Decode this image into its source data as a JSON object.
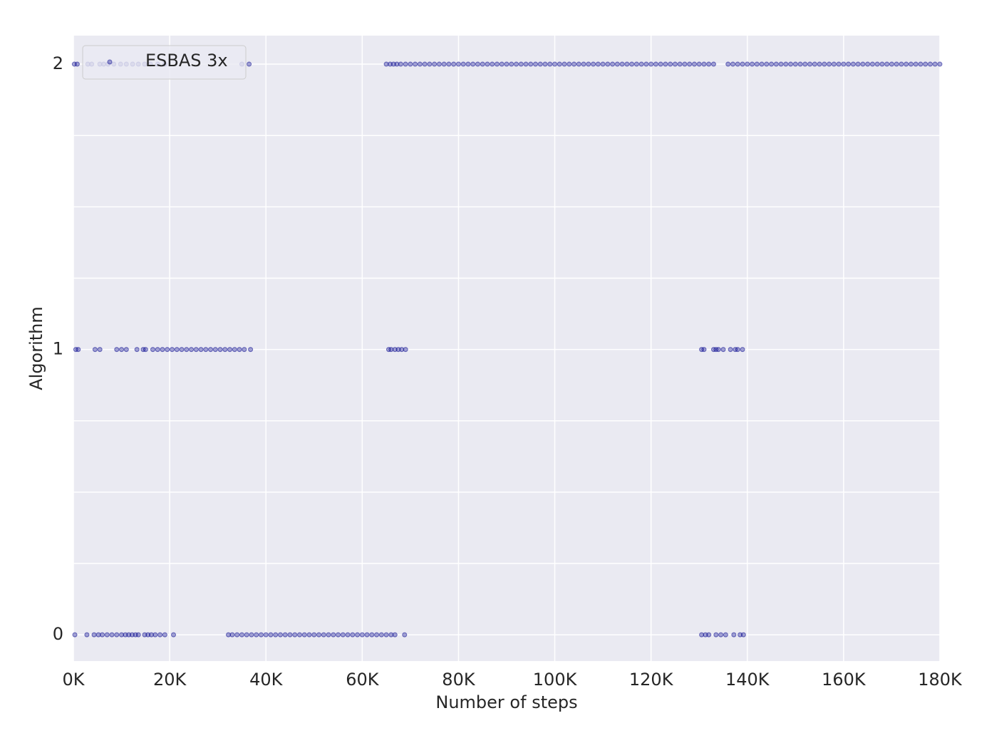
{
  "chart_data": {
    "type": "scatter",
    "x_label": "Number of steps",
    "y_label": "Algorithm",
    "xlim": [
      0,
      180000
    ],
    "ylim": [
      -0.092,
      2.1
    ],
    "xticks": [
      {
        "value": 0,
        "label": "0K"
      },
      {
        "value": 20000,
        "label": "20K"
      },
      {
        "value": 40000,
        "label": "40K"
      },
      {
        "value": 60000,
        "label": "60K"
      },
      {
        "value": 80000,
        "label": "80K"
      },
      {
        "value": 100000,
        "label": "100K"
      },
      {
        "value": 120000,
        "label": "120K"
      },
      {
        "value": 140000,
        "label": "140K"
      },
      {
        "value": 160000,
        "label": "160K"
      },
      {
        "value": 180000,
        "label": "180K"
      }
    ],
    "yticks": [
      0,
      1,
      2
    ],
    "ygrid": [
      0,
      0.25,
      0.5,
      0.75,
      1,
      1.25,
      1.5,
      1.75,
      2
    ],
    "grid": true,
    "legend": "upper left",
    "series": [
      {
        "name": "ESBAS 3x",
        "color": "#00008b",
        "points": [
          [
            200,
            2
          ],
          [
            800,
            2
          ],
          [
            3000,
            2
          ],
          [
            3800,
            2
          ],
          [
            5500,
            2
          ],
          [
            6300,
            2
          ],
          [
            7200,
            2
          ],
          [
            8400,
            2
          ],
          [
            9800,
            2
          ],
          [
            11000,
            2
          ],
          [
            12300,
            2
          ],
          [
            13500,
            2
          ],
          [
            14800,
            2
          ],
          [
            16000,
            2
          ],
          [
            17500,
            2
          ],
          [
            19000,
            2
          ],
          [
            35000,
            2
          ],
          [
            36500,
            2
          ],
          [
            65000,
            2
          ],
          [
            65800,
            2
          ],
          [
            66500,
            2
          ],
          [
            67200,
            2
          ],
          [
            68000,
            2
          ],
          [
            69000,
            2
          ],
          [
            70000,
            2
          ],
          [
            71000,
            2
          ],
          [
            72000,
            2
          ],
          [
            73000,
            2
          ],
          [
            74000,
            2
          ],
          [
            75000,
            2
          ],
          [
            76000,
            2
          ],
          [
            77000,
            2
          ],
          [
            78000,
            2
          ],
          [
            79000,
            2
          ],
          [
            80000,
            2
          ],
          [
            81000,
            2
          ],
          [
            82000,
            2
          ],
          [
            83000,
            2
          ],
          [
            84000,
            2
          ],
          [
            85000,
            2
          ],
          [
            86000,
            2
          ],
          [
            87000,
            2
          ],
          [
            88000,
            2
          ],
          [
            89000,
            2
          ],
          [
            90000,
            2
          ],
          [
            91000,
            2
          ],
          [
            92000,
            2
          ],
          [
            93000,
            2
          ],
          [
            94000,
            2
          ],
          [
            95000,
            2
          ],
          [
            96000,
            2
          ],
          [
            97000,
            2
          ],
          [
            98000,
            2
          ],
          [
            99000,
            2
          ],
          [
            100000,
            2
          ],
          [
            101000,
            2
          ],
          [
            102000,
            2
          ],
          [
            103000,
            2
          ],
          [
            104000,
            2
          ],
          [
            105000,
            2
          ],
          [
            106000,
            2
          ],
          [
            107000,
            2
          ],
          [
            108000,
            2
          ],
          [
            109000,
            2
          ],
          [
            110000,
            2
          ],
          [
            111000,
            2
          ],
          [
            112000,
            2
          ],
          [
            113000,
            2
          ],
          [
            114000,
            2
          ],
          [
            115000,
            2
          ],
          [
            116000,
            2
          ],
          [
            117000,
            2
          ],
          [
            118000,
            2
          ],
          [
            119000,
            2
          ],
          [
            120000,
            2
          ],
          [
            121000,
            2
          ],
          [
            122000,
            2
          ],
          [
            123000,
            2
          ],
          [
            124000,
            2
          ],
          [
            125000,
            2
          ],
          [
            126000,
            2
          ],
          [
            127000,
            2
          ],
          [
            128000,
            2
          ],
          [
            129000,
            2
          ],
          [
            130000,
            2
          ],
          [
            131000,
            2
          ],
          [
            132000,
            2
          ],
          [
            133000,
            2
          ],
          [
            136000,
            2
          ],
          [
            137000,
            2
          ],
          [
            138000,
            2
          ],
          [
            139000,
            2
          ],
          [
            140000,
            2
          ],
          [
            141000,
            2
          ],
          [
            142000,
            2
          ],
          [
            143000,
            2
          ],
          [
            144000,
            2
          ],
          [
            145000,
            2
          ],
          [
            146000,
            2
          ],
          [
            147000,
            2
          ],
          [
            148000,
            2
          ],
          [
            149000,
            2
          ],
          [
            150000,
            2
          ],
          [
            151000,
            2
          ],
          [
            152000,
            2
          ],
          [
            153000,
            2
          ],
          [
            154000,
            2
          ],
          [
            155000,
            2
          ],
          [
            156000,
            2
          ],
          [
            157000,
            2
          ],
          [
            158000,
            2
          ],
          [
            159000,
            2
          ],
          [
            160000,
            2
          ],
          [
            161000,
            2
          ],
          [
            162000,
            2
          ],
          [
            163000,
            2
          ],
          [
            164000,
            2
          ],
          [
            165000,
            2
          ],
          [
            166000,
            2
          ],
          [
            167000,
            2
          ],
          [
            168000,
            2
          ],
          [
            169000,
            2
          ],
          [
            170000,
            2
          ],
          [
            171000,
            2
          ],
          [
            172000,
            2
          ],
          [
            173000,
            2
          ],
          [
            174000,
            2
          ],
          [
            175000,
            2
          ],
          [
            176000,
            2
          ],
          [
            177000,
            2
          ],
          [
            178000,
            2
          ],
          [
            179000,
            2
          ],
          [
            180000,
            2
          ],
          [
            500,
            1
          ],
          [
            1000,
            1
          ],
          [
            4500,
            1
          ],
          [
            5500,
            1
          ],
          [
            9000,
            1
          ],
          [
            10000,
            1
          ],
          [
            11000,
            1
          ],
          [
            13200,
            1
          ],
          [
            14500,
            1
          ],
          [
            15000,
            1
          ],
          [
            16500,
            1
          ],
          [
            17500,
            1
          ],
          [
            18500,
            1
          ],
          [
            19500,
            1
          ],
          [
            20500,
            1
          ],
          [
            21500,
            1
          ],
          [
            22500,
            1
          ],
          [
            23500,
            1
          ],
          [
            24500,
            1
          ],
          [
            25500,
            1
          ],
          [
            26500,
            1
          ],
          [
            27500,
            1
          ],
          [
            28500,
            1
          ],
          [
            29500,
            1
          ],
          [
            30500,
            1
          ],
          [
            31500,
            1
          ],
          [
            32500,
            1
          ],
          [
            33500,
            1
          ],
          [
            34500,
            1
          ],
          [
            35500,
            1
          ],
          [
            36800,
            1
          ],
          [
            65500,
            1
          ],
          [
            66000,
            1
          ],
          [
            66800,
            1
          ],
          [
            67500,
            1
          ],
          [
            68200,
            1
          ],
          [
            69000,
            1
          ],
          [
            130500,
            1
          ],
          [
            131000,
            1
          ],
          [
            133000,
            1
          ],
          [
            133500,
            1
          ],
          [
            134000,
            1
          ],
          [
            135000,
            1
          ],
          [
            136500,
            1
          ],
          [
            137500,
            1
          ],
          [
            138000,
            1
          ],
          [
            139000,
            1
          ],
          [
            300,
            0
          ],
          [
            2800,
            0
          ],
          [
            4300,
            0
          ],
          [
            5200,
            0
          ],
          [
            6000,
            0
          ],
          [
            7000,
            0
          ],
          [
            8000,
            0
          ],
          [
            9000,
            0
          ],
          [
            10000,
            0
          ],
          [
            10800,
            0
          ],
          [
            11500,
            0
          ],
          [
            12200,
            0
          ],
          [
            12900,
            0
          ],
          [
            13500,
            0
          ],
          [
            14800,
            0
          ],
          [
            15500,
            0
          ],
          [
            16200,
            0
          ],
          [
            17000,
            0
          ],
          [
            18000,
            0
          ],
          [
            19000,
            0
          ],
          [
            20800,
            0
          ],
          [
            32200,
            0
          ],
          [
            33000,
            0
          ],
          [
            34000,
            0
          ],
          [
            35000,
            0
          ],
          [
            36000,
            0
          ],
          [
            37000,
            0
          ],
          [
            38000,
            0
          ],
          [
            39000,
            0
          ],
          [
            40000,
            0
          ],
          [
            41000,
            0
          ],
          [
            42000,
            0
          ],
          [
            43000,
            0
          ],
          [
            44000,
            0
          ],
          [
            45000,
            0
          ],
          [
            46000,
            0
          ],
          [
            47000,
            0
          ],
          [
            48000,
            0
          ],
          [
            49000,
            0
          ],
          [
            50000,
            0
          ],
          [
            51000,
            0
          ],
          [
            52000,
            0
          ],
          [
            53000,
            0
          ],
          [
            54000,
            0
          ],
          [
            55000,
            0
          ],
          [
            56000,
            0
          ],
          [
            57000,
            0
          ],
          [
            58000,
            0
          ],
          [
            59000,
            0
          ],
          [
            60000,
            0
          ],
          [
            61000,
            0
          ],
          [
            62000,
            0
          ],
          [
            63000,
            0
          ],
          [
            64000,
            0
          ],
          [
            65000,
            0
          ],
          [
            66000,
            0
          ],
          [
            66800,
            0
          ],
          [
            68800,
            0
          ],
          [
            130500,
            0
          ],
          [
            131300,
            0
          ],
          [
            132000,
            0
          ],
          [
            133500,
            0
          ],
          [
            134500,
            0
          ],
          [
            135500,
            0
          ],
          [
            137200,
            0
          ],
          [
            138500,
            0
          ],
          [
            139200,
            0
          ]
        ]
      }
    ]
  }
}
